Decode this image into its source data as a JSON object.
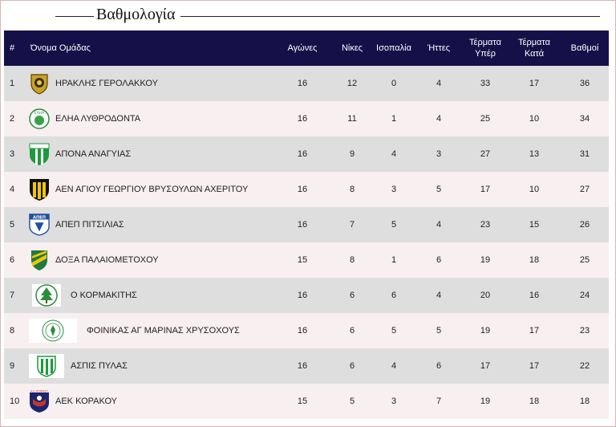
{
  "title": "Βαθμολογία",
  "headers": {
    "rank": "#",
    "team": "Όνομα Ομάδας",
    "played": "Αγώνες",
    "wins": "Νίκες",
    "draws": "Ισοπαλία",
    "losses": "Ήττες",
    "goals_for_1": "Τέρματα",
    "goals_for_2": "Υπέρ",
    "goals_against_1": "Τέρματα",
    "goals_against_2": "Κατά",
    "points": "Βαθμοί"
  },
  "rows": [
    {
      "rank": "1",
      "team": "ΗΡΑΚΛΗΣ ΓΕΡΟΛΑΚΚΟΥ",
      "played": "16",
      "wins": "12",
      "draws": "0",
      "losses": "4",
      "gf": "33",
      "ga": "17",
      "pts": "36",
      "crest": "shield-crest-gold"
    },
    {
      "rank": "2",
      "team": "ΕΛΗΑ ΛΥΘΡΟΔΟΝΤΑ",
      "played": "16",
      "wins": "11",
      "draws": "1",
      "losses": "4",
      "gf": "25",
      "ga": "10",
      "pts": "34",
      "crest": "round-crest-green",
      "crest_text": "ΕΛΗΑ"
    },
    {
      "rank": "3",
      "team": "ΑΠΟΝΑ ΑΝΑΓΥΙΑΣ",
      "played": "16",
      "wins": "9",
      "draws": "4",
      "losses": "3",
      "gf": "27",
      "ga": "13",
      "pts": "31",
      "crest": "shield-crest-green-white"
    },
    {
      "rank": "4",
      "team": "ΑΕΝ ΑΓΙΟΥ ΓΕΩΡΓΙΟΥ ΒΡΥΣΟΥΛΩΝ ΑΧΕΡΙΤΟΥ",
      "played": "16",
      "wins": "8",
      "draws": "3",
      "losses": "5",
      "gf": "17",
      "ga": "10",
      "pts": "27",
      "crest": "shield-crest-yellow-black"
    },
    {
      "rank": "5",
      "team": "ΑΠΕΠ ΠΙΤΣΙΛΙΑΣ",
      "played": "16",
      "wins": "7",
      "draws": "5",
      "losses": "4",
      "gf": "23",
      "ga": "15",
      "pts": "26",
      "crest": "shield-crest-blue",
      "crest_text": "ΑΠΕΠ"
    },
    {
      "rank": "6",
      "team": "ΔΟΞΑ ΠΑΛΑΙΟΜΕΤΟΧΟΥ",
      "played": "15",
      "wins": "8",
      "draws": "1",
      "losses": "6",
      "gf": "19",
      "ga": "18",
      "pts": "25",
      "crest": "shield-crest-yellow-green"
    },
    {
      "rank": "7",
      "team": "Ο ΚΟΡΜΑΚΙΤΗΣ",
      "played": "16",
      "wins": "6",
      "draws": "6",
      "losses": "4",
      "gf": "20",
      "ga": "16",
      "pts": "24",
      "crest": "round-crest-tree"
    },
    {
      "rank": "8",
      "team": "ΦΟΙΝΙΚΑΣ ΑΓ ΜΑΡΙΝΑΣ ΧΡΥΣΟΧΟΥΣ",
      "played": "16",
      "wins": "6",
      "draws": "5",
      "losses": "5",
      "gf": "19",
      "ga": "17",
      "pts": "23",
      "crest": "round-crest-wide"
    },
    {
      "rank": "9",
      "team": "ΑΣΠΙΣ ΠΥΛΑΣ",
      "played": "16",
      "wins": "6",
      "draws": "4",
      "losses": "6",
      "gf": "17",
      "ga": "17",
      "pts": "22",
      "crest": "shield-crest-green-stripes"
    },
    {
      "rank": "10",
      "team": "ΑΕΚ ΚΟΡΑΚΟΥ",
      "played": "15",
      "wins": "5",
      "draws": "3",
      "losses": "7",
      "gf": "19",
      "ga": "18",
      "pts": "18",
      "crest": "shield-crest-navy",
      "crest_text": "Α.Ε. ΚΟΡΑΚΟΥ"
    }
  ]
}
